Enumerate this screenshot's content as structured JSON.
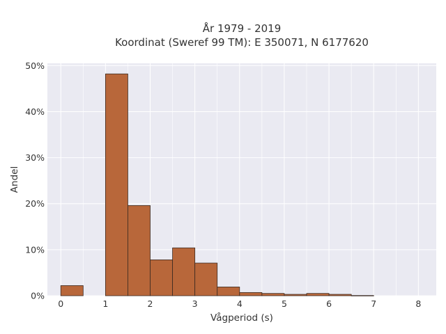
{
  "chart_data": {
    "type": "bar",
    "title": "År 1979 - 2019",
    "subtitle": "Koordinat (Sweref 99 TM): E 350071, N 6177620",
    "xlabel": "Vågperiod (s)",
    "ylabel": "Andel",
    "xlim": [
      -0.3,
      8.4
    ],
    "ylim": [
      0,
      50.5
    ],
    "x_ticks": [
      "0",
      "1",
      "2",
      "3",
      "4",
      "5",
      "6",
      "7",
      "8"
    ],
    "y_ticks": [
      "0%",
      "10%",
      "20%",
      "30%",
      "40%",
      "50%"
    ],
    "bin_width": 0.5,
    "bins": [
      {
        "x0": 0.0,
        "x1": 0.5,
        "value": 2.2
      },
      {
        "x0": 0.5,
        "x1": 1.0,
        "value": 0.0
      },
      {
        "x0": 1.0,
        "x1": 1.5,
        "value": 48.2
      },
      {
        "x0": 1.5,
        "x1": 2.0,
        "value": 19.6
      },
      {
        "x0": 2.0,
        "x1": 2.5,
        "value": 7.8
      },
      {
        "x0": 2.5,
        "x1": 3.0,
        "value": 10.4
      },
      {
        "x0": 3.0,
        "x1": 3.5,
        "value": 7.1
      },
      {
        "x0": 3.5,
        "x1": 4.0,
        "value": 1.9
      },
      {
        "x0": 4.0,
        "x1": 4.5,
        "value": 0.7
      },
      {
        "x0": 4.5,
        "x1": 5.0,
        "value": 0.5
      },
      {
        "x0": 5.0,
        "x1": 5.5,
        "value": 0.3
      },
      {
        "x0": 5.5,
        "x1": 6.0,
        "value": 0.5
      },
      {
        "x0": 6.0,
        "x1": 6.5,
        "value": 0.3
      },
      {
        "x0": 6.5,
        "x1": 7.0,
        "value": 0.05
      }
    ],
    "grid": true,
    "colors": {
      "bar_fill": "#b8673a",
      "bar_stroke": "#3a2a22",
      "plot_background": "#eaeaf2",
      "grid": "#ffffff"
    }
  }
}
